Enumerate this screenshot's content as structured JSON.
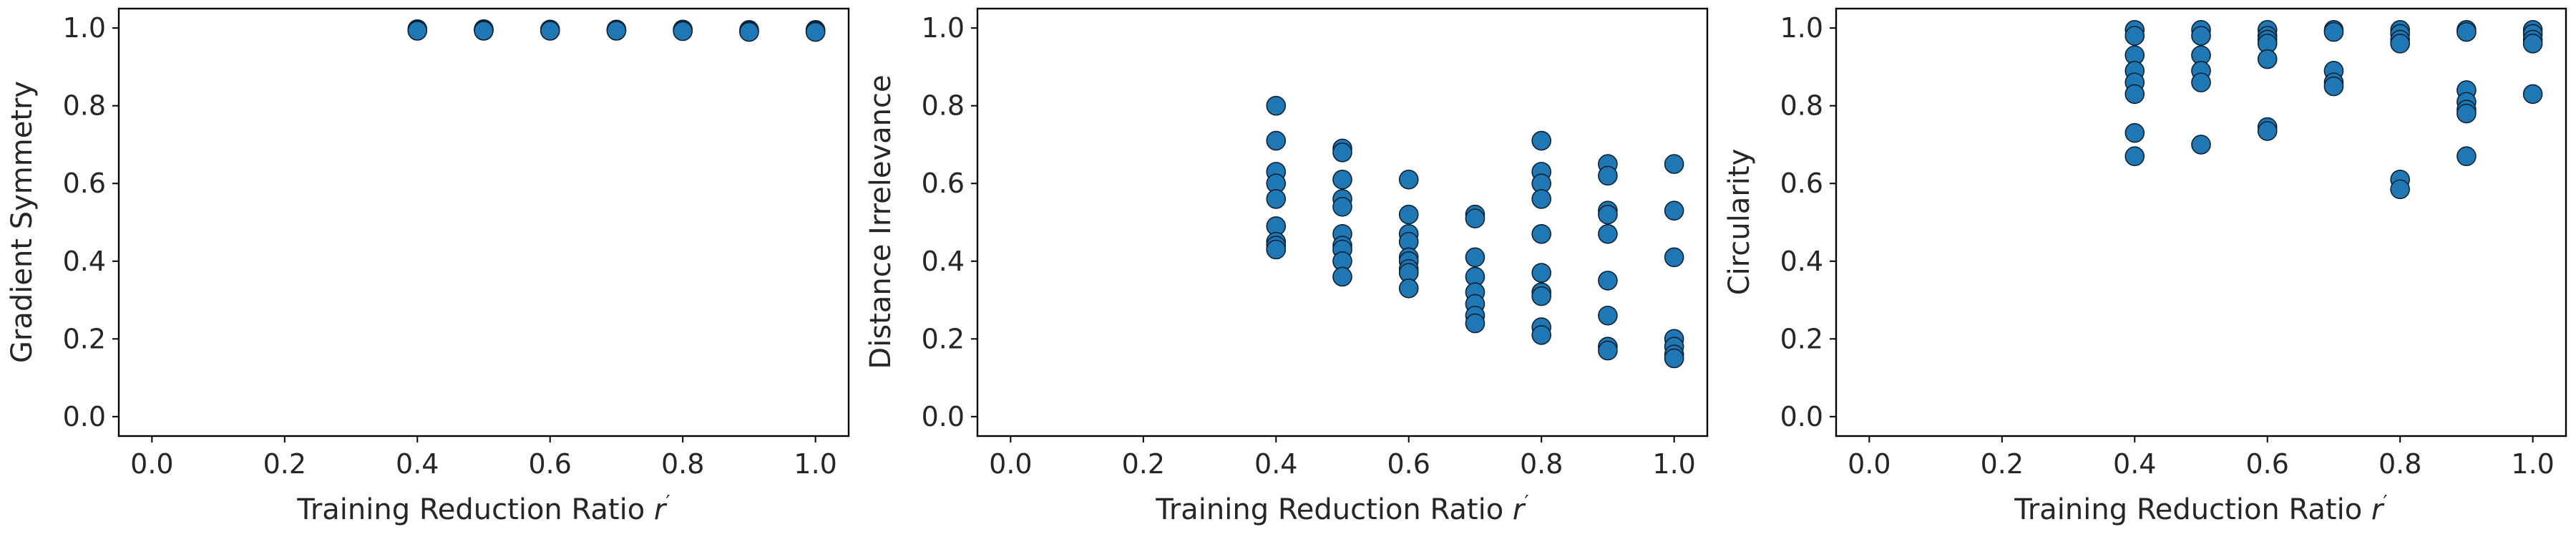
{
  "chart_data": [
    {
      "type": "scatter",
      "xlabel": "Training Reduction Ratio",
      "xlabel_var": "r",
      "xlabel_sup": "′",
      "ylabel": "Gradient Symmetry",
      "xlim": [
        -0.05,
        1.05
      ],
      "ylim": [
        -0.05,
        1.05
      ],
      "xticks": [
        "0.0",
        "0.2",
        "0.4",
        "0.6",
        "0.8",
        "1.0"
      ],
      "yticks": [
        "0.0",
        "0.2",
        "0.4",
        "0.6",
        "0.8",
        "1.0"
      ],
      "grid": false,
      "color": "#1f77b4",
      "x": [
        0.4,
        0.4,
        0.4,
        0.5,
        0.5,
        0.5,
        0.6,
        0.6,
        0.6,
        0.7,
        0.7,
        0.7,
        0.8,
        0.8,
        0.8,
        0.9,
        0.9,
        0.9,
        1.0,
        1.0,
        1.0
      ],
      "y": [
        0.997,
        0.995,
        0.993,
        0.997,
        0.995,
        0.993,
        0.996,
        0.994,
        0.993,
        0.996,
        0.994,
        0.993,
        0.996,
        0.994,
        0.992,
        0.995,
        0.993,
        0.99,
        0.995,
        0.993,
        0.99
      ]
    },
    {
      "type": "scatter",
      "xlabel": "Training Reduction Ratio",
      "xlabel_var": "r",
      "xlabel_sup": "′",
      "ylabel": "Distance Irrelevance",
      "xlim": [
        -0.05,
        1.05
      ],
      "ylim": [
        -0.05,
        1.05
      ],
      "xticks": [
        "0.0",
        "0.2",
        "0.4",
        "0.6",
        "0.8",
        "1.0"
      ],
      "yticks": [
        "0.0",
        "0.2",
        "0.4",
        "0.6",
        "0.8",
        "1.0"
      ],
      "grid": false,
      "color": "#1f77b4",
      "x": [
        0.4,
        0.4,
        0.4,
        0.4,
        0.4,
        0.4,
        0.4,
        0.4,
        0.4,
        0.5,
        0.5,
        0.5,
        0.5,
        0.5,
        0.5,
        0.5,
        0.5,
        0.5,
        0.5,
        0.6,
        0.6,
        0.6,
        0.6,
        0.6,
        0.6,
        0.6,
        0.6,
        0.6,
        0.7,
        0.7,
        0.7,
        0.7,
        0.7,
        0.7,
        0.7,
        0.7,
        0.8,
        0.8,
        0.8,
        0.8,
        0.8,
        0.8,
        0.8,
        0.8,
        0.8,
        0.8,
        0.9,
        0.9,
        0.9,
        0.9,
        0.9,
        0.9,
        0.9,
        0.9,
        0.9,
        1.0,
        1.0,
        1.0,
        1.0,
        1.0,
        1.0,
        1.0
      ],
      "y": [
        0.8,
        0.71,
        0.63,
        0.6,
        0.56,
        0.49,
        0.45,
        0.44,
        0.43,
        0.69,
        0.68,
        0.61,
        0.56,
        0.54,
        0.47,
        0.44,
        0.43,
        0.4,
        0.36,
        0.61,
        0.52,
        0.47,
        0.45,
        0.41,
        0.4,
        0.38,
        0.37,
        0.33,
        0.52,
        0.51,
        0.41,
        0.36,
        0.32,
        0.29,
        0.26,
        0.24,
        0.71,
        0.63,
        0.6,
        0.56,
        0.47,
        0.37,
        0.32,
        0.31,
        0.23,
        0.21,
        0.65,
        0.62,
        0.53,
        0.52,
        0.47,
        0.35,
        0.26,
        0.18,
        0.17,
        0.65,
        0.53,
        0.41,
        0.2,
        0.18,
        0.16,
        0.15
      ]
    },
    {
      "type": "scatter",
      "xlabel": "Training Reduction Ratio",
      "xlabel_var": "r",
      "xlabel_sup": "′",
      "ylabel": "Circularity",
      "xlim": [
        -0.05,
        1.05
      ],
      "ylim": [
        -0.05,
        1.05
      ],
      "xticks": [
        "0.0",
        "0.2",
        "0.4",
        "0.6",
        "0.8",
        "1.0"
      ],
      "yticks": [
        "0.0",
        "0.2",
        "0.4",
        "0.6",
        "0.8",
        "1.0"
      ],
      "grid": false,
      "color": "#1f77b4",
      "x": [
        0.4,
        0.4,
        0.4,
        0.4,
        0.4,
        0.4,
        0.4,
        0.4,
        0.5,
        0.5,
        0.5,
        0.5,
        0.5,
        0.5,
        0.6,
        0.6,
        0.6,
        0.6,
        0.6,
        0.6,
        0.6,
        0.7,
        0.7,
        0.7,
        0.7,
        0.7,
        0.8,
        0.8,
        0.8,
        0.8,
        0.8,
        0.8,
        0.9,
        0.9,
        0.9,
        0.9,
        0.9,
        0.9,
        0.9,
        1.0,
        1.0,
        1.0,
        1.0,
        1.0
      ],
      "y": [
        0.995,
        0.98,
        0.93,
        0.89,
        0.86,
        0.83,
        0.73,
        0.67,
        0.995,
        0.98,
        0.93,
        0.89,
        0.86,
        0.7,
        0.995,
        0.98,
        0.97,
        0.96,
        0.92,
        0.745,
        0.735,
        0.995,
        0.99,
        0.89,
        0.86,
        0.85,
        0.995,
        0.985,
        0.97,
        0.96,
        0.61,
        0.585,
        0.995,
        0.99,
        0.84,
        0.81,
        0.79,
        0.78,
        0.67,
        0.995,
        0.985,
        0.97,
        0.96,
        0.83
      ]
    }
  ]
}
